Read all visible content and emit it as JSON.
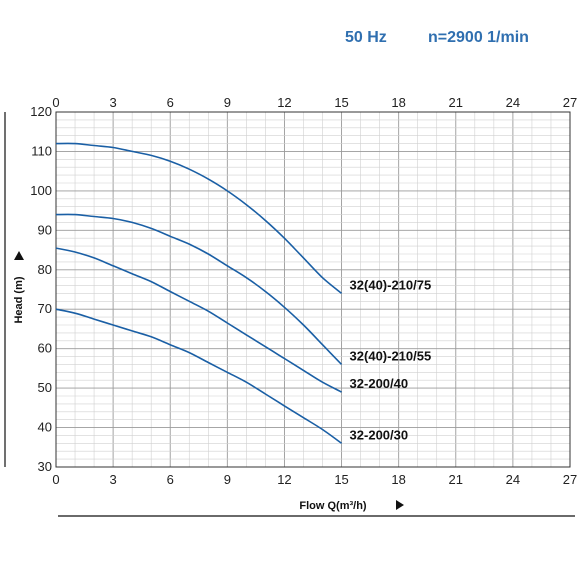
{
  "header": {
    "frequency": "50 Hz",
    "speed": "n=2900 1/min"
  },
  "chart_data": {
    "type": "line",
    "title": "",
    "xlabel": "Flow Q(m³/h)",
    "ylabel": "Head (m)",
    "xlim": [
      0,
      27
    ],
    "ylim": [
      30,
      120
    ],
    "x_ticks": [
      0,
      3,
      6,
      9,
      12,
      15,
      18,
      21,
      24,
      27
    ],
    "y_ticks": [
      30,
      40,
      50,
      60,
      70,
      80,
      90,
      100,
      110,
      120
    ],
    "grid": true,
    "line_color": "#1a5fa5",
    "series": [
      {
        "name": "32(40)-210/75",
        "x": [
          0,
          1,
          2,
          3,
          4,
          5,
          6,
          7,
          8,
          9,
          10,
          11,
          12,
          13,
          14,
          15
        ],
        "values": [
          112,
          112,
          111.5,
          111,
          110,
          109,
          107.5,
          105.5,
          103,
          100,
          96.5,
          92.5,
          88,
          83,
          78,
          74
        ]
      },
      {
        "name": "32(40)-210/55",
        "x": [
          0,
          1,
          2,
          3,
          4,
          5,
          6,
          7,
          8,
          9,
          10,
          11,
          12,
          13,
          14,
          15
        ],
        "values": [
          94,
          94,
          93.5,
          93,
          92,
          90.5,
          88.5,
          86.5,
          84,
          81,
          78,
          74.5,
          70.5,
          66,
          61,
          56
        ]
      },
      {
        "name": "32-200/40",
        "x": [
          0,
          1,
          2,
          3,
          4,
          5,
          6,
          7,
          8,
          9,
          10,
          11,
          12,
          13,
          14,
          15
        ],
        "values": [
          85.5,
          84.5,
          83,
          81,
          79,
          77,
          74.5,
          72,
          69.5,
          66.5,
          63.5,
          60.5,
          57.5,
          54.5,
          51.5,
          49
        ]
      },
      {
        "name": "32-200/30",
        "x": [
          0,
          1,
          2,
          3,
          4,
          5,
          6,
          7,
          8,
          9,
          10,
          11,
          12,
          13,
          14,
          15
        ],
        "values": [
          70,
          69,
          67.5,
          66,
          64.5,
          63,
          61,
          59,
          56.5,
          54,
          51.5,
          48.5,
          45.5,
          42.5,
          39.5,
          36
        ]
      }
    ]
  }
}
